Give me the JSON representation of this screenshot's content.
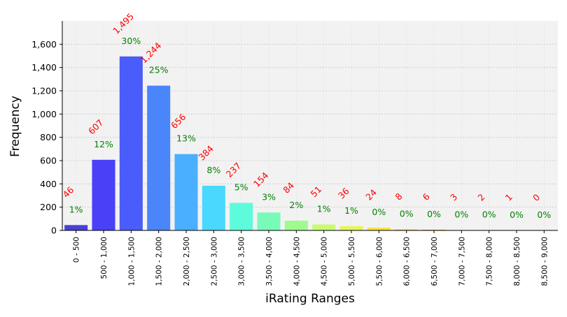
{
  "chart_data": {
    "type": "bar",
    "title": "",
    "xlabel": "iRating Ranges",
    "ylabel": "Frequency",
    "ylim": [
      0,
      1800
    ],
    "yticks": [
      0,
      200,
      400,
      600,
      800,
      1000,
      1200,
      1400,
      1600
    ],
    "ytick_labels": [
      "0",
      "200",
      "400",
      "600",
      "800",
      "1,000",
      "1,200",
      "1,400",
      "1,600"
    ],
    "grid": true,
    "categories": [
      "0 - 500",
      "500 - 1,000",
      "1,000 - 1,500",
      "1,500 - 2,000",
      "2,000 - 2,500",
      "2,500 - 3,000",
      "3,000 - 3,500",
      "3,500 - 4,000",
      "4,000 - 4,500",
      "4,500 - 5,000",
      "5,000 - 5,500",
      "5,500 - 6,000",
      "6,000 - 6,500",
      "6,500 - 7,000",
      "7,000 - 7,500",
      "7,500 - 8,000",
      "8,000 - 8,500",
      "8,500 - 9,000"
    ],
    "values": [
      46,
      607,
      1495,
      1244,
      656,
      384,
      237,
      154,
      84,
      51,
      36,
      24,
      8,
      6,
      3,
      2,
      1,
      0
    ],
    "count_labels": [
      "46",
      "607",
      "1,495",
      "1,244",
      "656",
      "384",
      "237",
      "154",
      "84",
      "51",
      "36",
      "24",
      "8",
      "6",
      "3",
      "2",
      "1",
      "0"
    ],
    "percent_labels": [
      "1%",
      "12%",
      "30%",
      "25%",
      "13%",
      "8%",
      "5%",
      "3%",
      "2%",
      "1%",
      "1%",
      "0%",
      "0%",
      "0%",
      "0%",
      "0%",
      "0%",
      "0%"
    ],
    "colors": [
      "#4a40d8",
      "#4a40f8",
      "#4a5cfa",
      "#4a86fa",
      "#4aafff",
      "#4ad8ff",
      "#5dfbdc",
      "#78fbb9",
      "#a0fb8e",
      "#c8fb72",
      "#e6f557",
      "#ffe040",
      "#ffc030",
      "#ffa020",
      "#ff8010",
      "#ff5808",
      "#ff3004",
      "#e00000"
    ],
    "count_label_color": "#ff0000",
    "percent_label_color": "#008000",
    "plot_background": "#f2f2f2"
  }
}
